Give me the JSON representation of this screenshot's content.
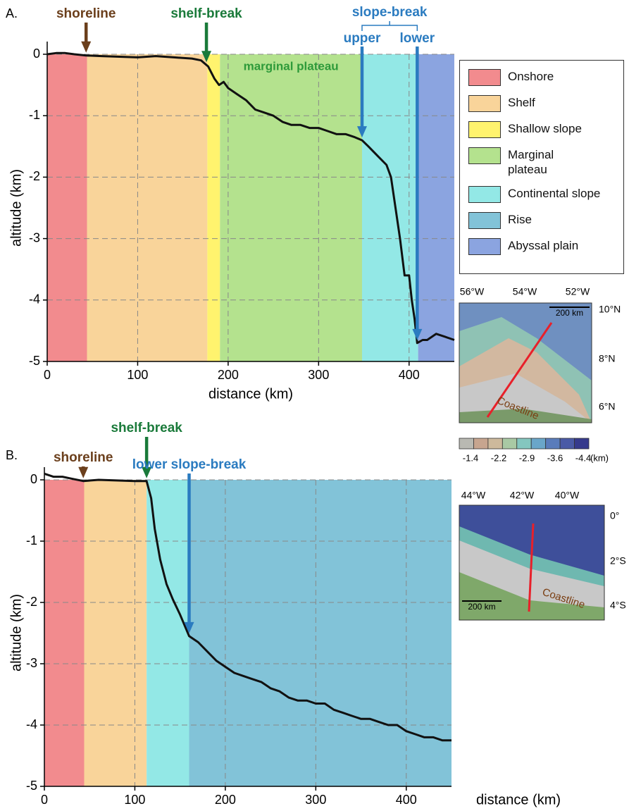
{
  "chart_data": [
    {
      "type": "line",
      "panel": "A.",
      "xlabel": "distance (km)",
      "ylabel": "altitude (km)",
      "x": [
        0,
        10,
        20,
        30,
        43,
        60,
        80,
        100,
        120,
        140,
        160,
        170,
        178,
        185,
        190,
        195,
        200,
        210,
        220,
        230,
        240,
        250,
        260,
        270,
        280,
        290,
        300,
        310,
        320,
        330,
        340,
        348,
        355,
        365,
        375,
        380,
        385,
        390,
        395,
        400,
        403,
        406,
        409,
        415,
        420,
        430,
        440,
        450
      ],
      "series": [
        {
          "color": "#111111",
          "values": [
            0,
            0.02,
            0.02,
            0,
            -0.02,
            -0.03,
            -0.04,
            -0.05,
            -0.03,
            -0.05,
            -0.07,
            -0.1,
            -0.2,
            -0.4,
            -0.5,
            -0.45,
            -0.55,
            -0.65,
            -0.75,
            -0.9,
            -0.95,
            -1.0,
            -1.1,
            -1.15,
            -1.15,
            -1.2,
            -1.2,
            -1.25,
            -1.3,
            -1.3,
            -1.35,
            -1.4,
            -1.5,
            -1.65,
            -1.8,
            -2.0,
            -2.5,
            -3.0,
            -3.6,
            -3.6,
            -4.0,
            -4.3,
            -4.7,
            -4.65,
            -4.65,
            -4.55,
            -4.6,
            -4.65
          ]
        }
      ],
      "xlim": [
        0,
        450
      ],
      "ylim": [
        -5,
        0
      ],
      "xticks": [
        0,
        100,
        200,
        300,
        400
      ],
      "yticks": [
        0,
        -1,
        -2,
        -3,
        -4,
        -5
      ],
      "grid": true,
      "bands": [
        {
          "color": "#f28b8e",
          "range": [
            0,
            44
          ]
        },
        {
          "color": "#f9d49a",
          "range": [
            44,
            177
          ]
        },
        {
          "color": "#fff36e",
          "range": [
            177,
            191
          ]
        },
        {
          "color": "#b4e28e",
          "range": [
            191,
            348
          ]
        },
        {
          "color": "#93e8e6",
          "range": [
            348,
            410
          ]
        },
        {
          "color": "#8ba4e0",
          "range": [
            410,
            450
          ]
        }
      ],
      "region_label": {
        "text": "marginal plateau",
        "color": "#2e9a3a"
      },
      "annotations": [
        {
          "text": "shoreline",
          "x": 43,
          "color": "#6b3f1c"
        },
        {
          "text": "shelf-break",
          "x": 176,
          "color": "#1a7a3a"
        }
      ],
      "annotation_group": {
        "text": "slope-break",
        "color": "#2a7bc0",
        "items": [
          {
            "text": "upper",
            "x": 348
          },
          {
            "text": "lower",
            "x": 409
          }
        ]
      }
    },
    {
      "type": "line",
      "panel": "B.",
      "xlabel": "distance (km)",
      "ylabel": "altitude (km)",
      "x": [
        0,
        10,
        20,
        30,
        43,
        60,
        80,
        100,
        113,
        118,
        122,
        128,
        135,
        142,
        150,
        160,
        170,
        180,
        190,
        200,
        210,
        220,
        230,
        240,
        250,
        260,
        270,
        280,
        290,
        300,
        310,
        320,
        330,
        340,
        350,
        360,
        370,
        380,
        390,
        400,
        410,
        420,
        430,
        440,
        450
      ],
      "series": [
        {
          "color": "#111111",
          "values": [
            0.1,
            0.05,
            0.05,
            0.02,
            -0.02,
            0,
            -0.01,
            -0.02,
            -0.02,
            -0.3,
            -0.8,
            -1.3,
            -1.7,
            -1.95,
            -2.2,
            -2.55,
            -2.65,
            -2.8,
            -2.95,
            -3.05,
            -3.15,
            -3.2,
            -3.25,
            -3.3,
            -3.4,
            -3.45,
            -3.55,
            -3.6,
            -3.6,
            -3.65,
            -3.65,
            -3.75,
            -3.8,
            -3.85,
            -3.9,
            -3.9,
            -3.95,
            -4.0,
            -4.0,
            -4.1,
            -4.15,
            -4.2,
            -4.2,
            -4.25,
            -4.25
          ]
        }
      ],
      "xlim": [
        0,
        450
      ],
      "ylim": [
        -5,
        0
      ],
      "xticks": [
        0,
        100,
        200,
        300,
        400
      ],
      "yticks": [
        0,
        -1,
        -2,
        -3,
        -4,
        -5
      ],
      "grid": true,
      "bands": [
        {
          "color": "#f28b8e",
          "range": [
            0,
            44
          ]
        },
        {
          "color": "#f9d49a",
          "range": [
            44,
            113
          ]
        },
        {
          "color": "#93e8e6",
          "range": [
            113,
            160
          ]
        },
        {
          "color": "#82c3d8",
          "range": [
            160,
            450
          ]
        }
      ],
      "annotations": [
        {
          "text": "shoreline",
          "x": 43,
          "color": "#6b3f1c"
        },
        {
          "text": "shelf-break",
          "x": 113,
          "color": "#1a7a3a"
        },
        {
          "text": "lower slope-break",
          "x": 160,
          "color": "#2a7bc0"
        }
      ]
    }
  ],
  "legend": [
    {
      "name": "Onshore",
      "color": "#f28b8e"
    },
    {
      "name": "Shelf",
      "color": "#f9d49a"
    },
    {
      "name": "Shallow slope",
      "color": "#fff36e"
    },
    {
      "name": "Marginal\nplateau",
      "color": "#b4e28e"
    },
    {
      "name": "Continental slope",
      "color": "#93e8e6"
    },
    {
      "name": "Rise",
      "color": "#82c3d8"
    },
    {
      "name": "Abyssal plain",
      "color": "#8ba4e0"
    }
  ],
  "maps": [
    {
      "lon_labels": [
        "56°W",
        "54°W",
        "52°W"
      ],
      "lat_labels": [
        "10°N",
        "8°N",
        "6°N"
      ],
      "scale": "200 km",
      "coast": "Coastline"
    },
    {
      "lon_labels": [
        "44°W",
        "42°W",
        "40°W"
      ],
      "lat_labels": [
        "0°",
        "2°S",
        "4°S"
      ],
      "scale": "200 km",
      "coast": "Coastline"
    }
  ],
  "colorbar": {
    "colors": [
      "#b9b9b2",
      "#c7a58f",
      "#cdb99c",
      "#a9c9a4",
      "#84c6bf",
      "#6aa6c9",
      "#5a7cbb",
      "#4a5aa6",
      "#363a8c"
    ],
    "labels": [
      -1.4,
      -2.2,
      -2.9,
      -3.6,
      -4.4
    ],
    "unit": "(km)"
  }
}
